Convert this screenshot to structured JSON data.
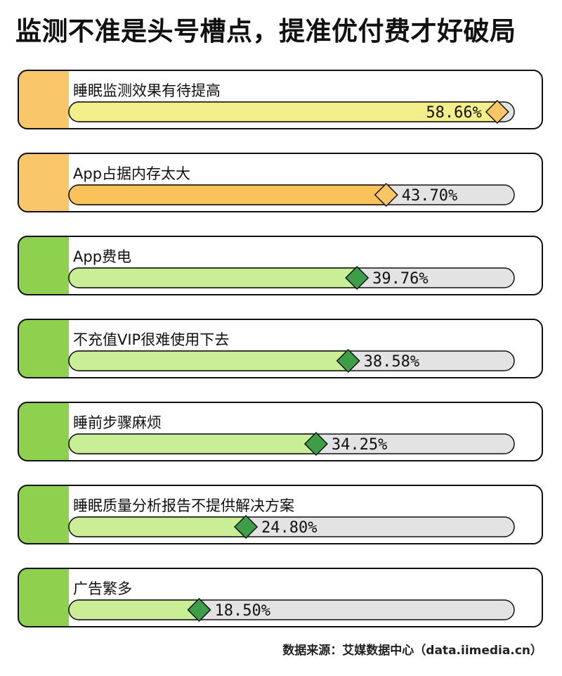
{
  "title": "监测不准是头号槽点，提准优付费才好破局",
  "source": "数据来源：艾媒数据中心（data.iimedia.cn）",
  "colors": {
    "orange_tab": "#F9C76A",
    "green_tab": "#8DD14E",
    "yellow_fill": "#F4EE8A",
    "orange_fill": "#F9C25B",
    "green_fill": "#C9EE96",
    "track": "#E3E3E3",
    "yellow_diamond": "#F8C664",
    "green_diamond": "#3E9E48"
  },
  "chart_data": {
    "type": "bar",
    "orientation": "horizontal",
    "unit": "%",
    "xlim": [
      0,
      60
    ],
    "categories": [
      "睡眠监测效果有待提高",
      "App占据内存太大",
      "App费电",
      "不充值VIP很难使用下去",
      "睡前步骤麻烦",
      "睡眠质量分析报告不提供解决方案",
      "广告繁多"
    ],
    "values": [
      58.66,
      43.7,
      39.76,
      38.58,
      34.25,
      24.8,
      18.5
    ],
    "labels": [
      "58.66%",
      "43.70%",
      "39.76%",
      "38.58%",
      "34.25%",
      "24.80%",
      "18.50%"
    ],
    "highlight": [
      "orange",
      "orange",
      "green",
      "green",
      "green",
      "green",
      "green"
    ]
  }
}
